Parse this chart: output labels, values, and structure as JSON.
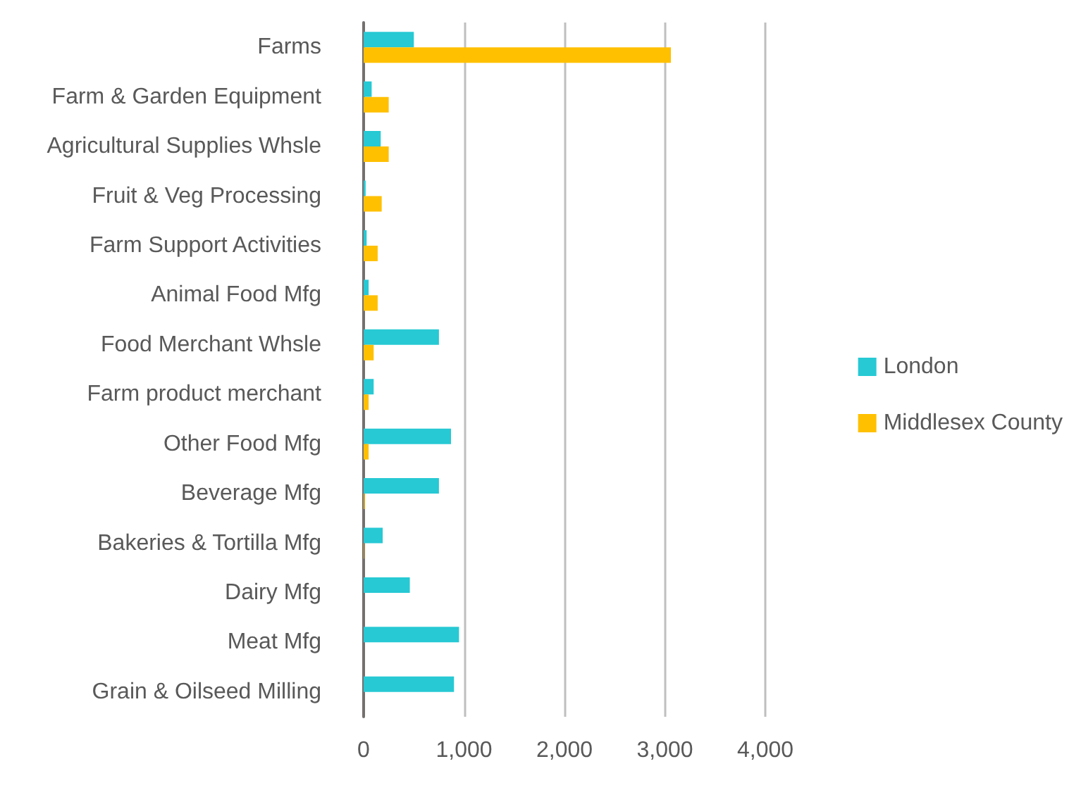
{
  "chart_data": {
    "type": "bar",
    "orientation": "horizontal",
    "categories": [
      "Farms",
      "Farm & Garden Equipment",
      "Agricultural Supplies Whsle",
      "Fruit & Veg Processing",
      "Farm Support Activities",
      "Animal Food Mfg",
      "Food Merchant Whsle",
      "Farm product merchant",
      "Other Food Mfg",
      "Beverage Mfg",
      "Bakeries & Tortilla Mfg",
      "Dairy Mfg",
      "Meat Mfg",
      "Grain & Oilseed Milling"
    ],
    "series": [
      {
        "name": "London",
        "color": "#26c9d4",
        "values": [
          500,
          80,
          170,
          20,
          30,
          50,
          750,
          100,
          870,
          750,
          190,
          460,
          950,
          900
        ]
      },
      {
        "name": "Middlesex County",
        "color": "#ffc000",
        "values": [
          3060,
          250,
          250,
          180,
          140,
          140,
          100,
          50,
          50,
          10,
          5,
          0,
          0,
          0
        ]
      }
    ],
    "xlim": [
      0,
      4000
    ],
    "xticks": [
      {
        "value": 0,
        "label": "0"
      },
      {
        "value": 1000,
        "label": "1,000"
      },
      {
        "value": 2000,
        "label": "2,000"
      },
      {
        "value": 3000,
        "label": "3,000"
      },
      {
        "value": 4000,
        "label": "4,000"
      }
    ],
    "grid": "x",
    "legend": "right"
  }
}
